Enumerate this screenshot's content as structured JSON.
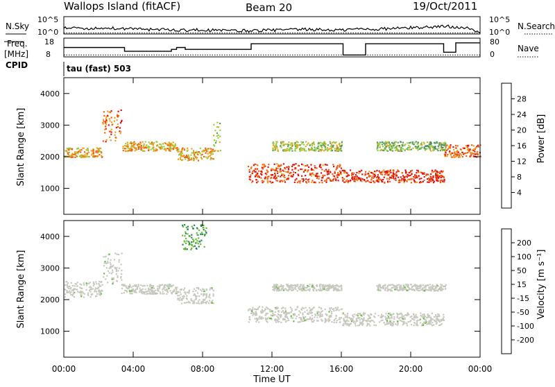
{
  "header": {
    "station": "Wallops Island (fitACF)",
    "beam": "Beam 20",
    "date": "19/Oct/2011"
  },
  "noise_panel": {
    "left_label": "N.Sky",
    "right_label": "N.Search",
    "left_ticks": [
      "10^5",
      "10^0"
    ],
    "right_ticks": [
      "10^5",
      "10^0"
    ]
  },
  "freq_panel": {
    "left_label_line1": "Freq.",
    "left_label_line2": "[MHz]",
    "right_label": "Nave",
    "left_ticks": [
      "18",
      "8"
    ],
    "right_ticks": [
      "80",
      "0"
    ]
  },
  "cpid_panel": {
    "label": "CPID",
    "program": "tau (fast) 503"
  },
  "power_panel": {
    "ylabel": "Slant Range [km]",
    "colorbar_label": "Power [dB]",
    "colorbar_ticks": [
      "28",
      "24",
      "20",
      "16",
      "12",
      "8",
      "4"
    ]
  },
  "velocity_panel": {
    "ylabel": "Slant Range [km]",
    "colorbar_label": "Velocity [m s⁻¹]",
    "colorbar_ticks": [
      "200",
      "100",
      "50",
      "15",
      "-15",
      "-50",
      "-100",
      "-200"
    ]
  },
  "time_axis": {
    "label": "Time UT",
    "ticks": [
      "00:00",
      "04:00",
      "08:00",
      "12:00",
      "16:00",
      "20:00",
      "00:00"
    ]
  },
  "colors": {
    "power": [
      "#1010e0",
      "#2050c0",
      "#3d7f5a",
      "#5aa060",
      "#98d040",
      "#f0a020",
      "#f06010",
      "#e01010"
    ],
    "velocity": [
      "#e01010",
      "#f06010",
      "#f0a020",
      "#c8c8c0",
      "#c8c8c0",
      "#60c030",
      "#2e8060",
      "#1030a0"
    ]
  },
  "chart_data": [
    {
      "type": "line",
      "title": "N.Sky / N.Search",
      "x_units": "hours UT",
      "xlim": [
        0,
        24
      ],
      "y_scale": "log",
      "ylim_exp": [
        0,
        5
      ],
      "series": [
        {
          "name": "N.Sky",
          "x": [
            0,
            1,
            2,
            3,
            4,
            5,
            6,
            7,
            8,
            9,
            10,
            11,
            12,
            13,
            14,
            15,
            16,
            17,
            18,
            19,
            20,
            21,
            22,
            23,
            24
          ],
          "y_exp": [
            1.8,
            1.5,
            1.6,
            1.7,
            1.4,
            1.3,
            1.2,
            1.1,
            1.2,
            1.0,
            0.9,
            1.0,
            1.1,
            1.2,
            1.3,
            1.2,
            1.1,
            1.5,
            1.4,
            1.6,
            1.8,
            2.0,
            2.2,
            2.0,
            0.4
          ]
        },
        {
          "name": "N.Search",
          "x": [
            0,
            24
          ],
          "y_exp": [
            0.3,
            0.3
          ]
        }
      ]
    },
    {
      "type": "line",
      "title": "Freq. / Nave",
      "x_units": "hours UT",
      "xlim": [
        0,
        24
      ],
      "ylim": [
        8,
        18
      ],
      "series": [
        {
          "name": "Freq.",
          "x": [
            0,
            3.5,
            3.5,
            6.2,
            6.2,
            6.5,
            6.5,
            7.0,
            7.0,
            10.8,
            10.8,
            16.1,
            16.1,
            17.4,
            17.4,
            21.9,
            21.9,
            22.6,
            22.6,
            24
          ],
          "y": [
            13.0,
            13.0,
            11.0,
            11.0,
            12.0,
            12.0,
            13.0,
            13.0,
            12.0,
            12.0,
            15.0,
            15.0,
            9.0,
            9.0,
            15.0,
            15.0,
            10.5,
            10.5,
            15.5,
            15.5
          ]
        },
        {
          "name": "Nave",
          "x": [
            0,
            24
          ],
          "y": [
            9.0,
            9.0
          ]
        }
      ]
    },
    {
      "type": "heatmap",
      "title": "Power",
      "xlabel": "Time UT",
      "ylabel": "Slant Range [km]",
      "colorbar_label": "Power [dB]",
      "xlim": [
        0,
        24
      ],
      "ylim": [
        180,
        4500
      ],
      "y_ticks": [
        1000,
        2000,
        3000,
        4000
      ],
      "zlim": [
        0,
        32
      ],
      "bands": [
        {
          "t": [
            0.0,
            2.2
          ],
          "r": [
            2000,
            2300
          ],
          "z": 22
        },
        {
          "t": [
            2.2,
            3.3
          ],
          "r": [
            2500,
            3500
          ],
          "z": 26
        },
        {
          "t": [
            3.3,
            6.5
          ],
          "r": [
            2200,
            2500
          ],
          "z": 22
        },
        {
          "t": [
            6.5,
            8.6
          ],
          "r": [
            1900,
            2300
          ],
          "z": 22
        },
        {
          "t": [
            8.6,
            9.0
          ],
          "r": [
            2200,
            3200
          ],
          "z": 18
        },
        {
          "t": [
            10.6,
            16.0
          ],
          "r": [
            1200,
            1800
          ],
          "z": 28
        },
        {
          "t": [
            16.0,
            21.9
          ],
          "r": [
            1200,
            1600
          ],
          "z": 28
        },
        {
          "t": [
            12.0,
            16.0
          ],
          "r": [
            2200,
            2500
          ],
          "z": 18
        },
        {
          "t": [
            18.0,
            22.0
          ],
          "r": [
            2200,
            2500
          ],
          "z": 16
        },
        {
          "t": [
            21.9,
            24.0
          ],
          "r": [
            2000,
            2400
          ],
          "z": 26
        }
      ]
    },
    {
      "type": "heatmap",
      "title": "Velocity",
      "xlabel": "Time UT",
      "ylabel": "Slant Range [km]",
      "colorbar_label": "Velocity [m s⁻¹]",
      "xlim": [
        0,
        24
      ],
      "ylim": [
        180,
        4500
      ],
      "y_ticks": [
        1000,
        2000,
        3000,
        4000
      ],
      "zlim": [
        -250,
        250
      ],
      "bands": [
        {
          "t": [
            0.0,
            2.2
          ],
          "r": [
            2100,
            2600
          ],
          "z": 0
        },
        {
          "t": [
            2.2,
            3.3
          ],
          "r": [
            2500,
            3500
          ],
          "z": 0
        },
        {
          "t": [
            3.3,
            6.5
          ],
          "r": [
            2200,
            2500
          ],
          "z": 0
        },
        {
          "t": [
            6.5,
            8.6
          ],
          "r": [
            1900,
            2400
          ],
          "z": 0
        },
        {
          "t": [
            6.8,
            8.2
          ],
          "r": [
            3600,
            4400
          ],
          "z": 45
        },
        {
          "t": [
            10.6,
            16.0
          ],
          "r": [
            1300,
            1800
          ],
          "z": 0
        },
        {
          "t": [
            16.0,
            21.9
          ],
          "r": [
            1200,
            1600
          ],
          "z": 0
        },
        {
          "t": [
            12.0,
            16.0
          ],
          "r": [
            2300,
            2500
          ],
          "z": 0
        },
        {
          "t": [
            18.0,
            22.0
          ],
          "r": [
            2300,
            2500
          ],
          "z": 0
        }
      ]
    }
  ]
}
